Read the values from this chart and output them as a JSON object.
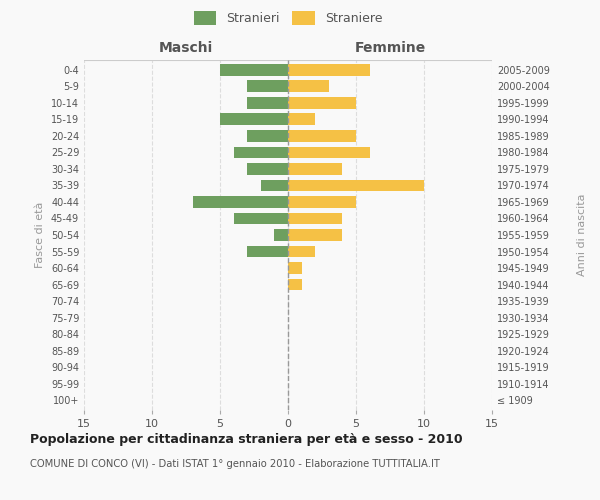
{
  "age_groups": [
    "100+",
    "95-99",
    "90-94",
    "85-89",
    "80-84",
    "75-79",
    "70-74",
    "65-69",
    "60-64",
    "55-59",
    "50-54",
    "45-49",
    "40-44",
    "35-39",
    "30-34",
    "25-29",
    "20-24",
    "15-19",
    "10-14",
    "5-9",
    "0-4"
  ],
  "birth_years": [
    "≤ 1909",
    "1910-1914",
    "1915-1919",
    "1920-1924",
    "1925-1929",
    "1930-1934",
    "1935-1939",
    "1940-1944",
    "1945-1949",
    "1950-1954",
    "1955-1959",
    "1960-1964",
    "1965-1969",
    "1970-1974",
    "1975-1979",
    "1980-1984",
    "1985-1989",
    "1990-1994",
    "1995-1999",
    "2000-2004",
    "2005-2009"
  ],
  "maschi": [
    0,
    0,
    0,
    0,
    0,
    0,
    0,
    0,
    0,
    3,
    1,
    4,
    7,
    2,
    3,
    4,
    3,
    5,
    3,
    3,
    5
  ],
  "femmine": [
    0,
    0,
    0,
    0,
    0,
    0,
    0,
    1,
    1,
    2,
    4,
    4,
    5,
    10,
    4,
    6,
    5,
    2,
    5,
    3,
    6
  ],
  "maschi_color": "#6e9f5f",
  "femmine_color": "#f5c145",
  "title": "Popolazione per cittadinanza straniera per età e sesso - 2010",
  "subtitle": "COMUNE DI CONCO (VI) - Dati ISTAT 1° gennaio 2010 - Elaborazione TUTTITALIA.IT",
  "xlabel_left": "Maschi",
  "xlabel_right": "Femmine",
  "ylabel_left": "Fasce di età",
  "ylabel_right": "Anni di nascita",
  "legend_maschi": "Stranieri",
  "legend_femmine": "Straniere",
  "xlim": 15,
  "background_color": "#f9f9f9",
  "grid_color": "#dddddd"
}
